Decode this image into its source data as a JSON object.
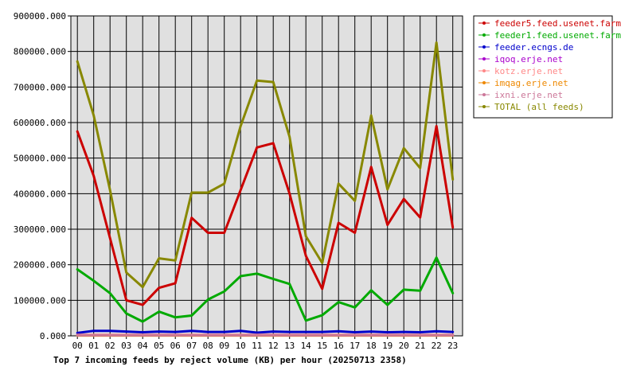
{
  "chart_data": {
    "type": "line",
    "title": "Top 7 incoming feeds by reject volume (KB) per hour (20250713 2358)",
    "categories": [
      "00",
      "01",
      "02",
      "03",
      "04",
      "05",
      "06",
      "07",
      "08",
      "09",
      "10",
      "11",
      "12",
      "13",
      "14",
      "15",
      "16",
      "17",
      "18",
      "19",
      "20",
      "21",
      "22",
      "23"
    ],
    "ylim": [
      0,
      900000
    ],
    "yticks": [
      "0.000",
      "100000.000",
      "200000.000",
      "300000.000",
      "400000.000",
      "500000.000",
      "600000.000",
      "700000.000",
      "800000.000",
      "900000.000"
    ],
    "grid": true,
    "legend_position": "right",
    "series": [
      {
        "name": "feeder5.feed.usenet.farm",
        "color": "#cc0000",
        "values": [
          575000,
          450000,
          275000,
          100000,
          87000,
          135000,
          148000,
          332000,
          290000,
          290000,
          410000,
          530000,
          542000,
          400000,
          225000,
          132000,
          318000,
          290000,
          475000,
          312000,
          385000,
          333000,
          590000,
          305000
        ]
      },
      {
        "name": "feeder1.feed.usenet.farm",
        "color": "#00aa00",
        "values": [
          187000,
          155000,
          120000,
          63000,
          40000,
          68000,
          52000,
          57000,
          102000,
          125000,
          168000,
          175000,
          160000,
          146000,
          43000,
          58000,
          95000,
          80000,
          128000,
          87000,
          130000,
          127000,
          220000,
          120000
        ]
      },
      {
        "name": "feeder.ecngs.de",
        "color": "#0000cc",
        "values": [
          8000,
          14000,
          14000,
          12000,
          10000,
          12000,
          11000,
          14000,
          11000,
          11000,
          14000,
          9000,
          12000,
          11000,
          11000,
          11000,
          13000,
          10000,
          12000,
          10000,
          11000,
          10000,
          13000,
          11000
        ]
      },
      {
        "name": "iqoq.erje.net",
        "color": "#aa00cc",
        "values": [
          2000,
          2000,
          2000,
          2000,
          2000,
          2000,
          2000,
          2000,
          2000,
          2000,
          2000,
          2000,
          2000,
          2000,
          2000,
          2000,
          2000,
          2000,
          2000,
          2000,
          2000,
          2000,
          2000,
          2000
        ]
      },
      {
        "name": "kotz.erje.net",
        "color": "#ff8888",
        "values": [
          3000,
          3000,
          3000,
          3000,
          3000,
          3000,
          3000,
          3000,
          3000,
          3000,
          3000,
          3000,
          3000,
          3000,
          3000,
          3000,
          3000,
          3000,
          3000,
          3000,
          3000,
          3000,
          3000,
          3000
        ]
      },
      {
        "name": "imqag.erje.net",
        "color": "#ee8800",
        "values": [
          1000,
          1000,
          1000,
          1000,
          1000,
          1000,
          1000,
          1000,
          1000,
          1000,
          1000,
          1000,
          1000,
          1000,
          1000,
          1000,
          1000,
          1000,
          1000,
          1000,
          1000,
          1000,
          1000,
          1000
        ]
      },
      {
        "name": "ixni.erje.net",
        "color": "#cc7799",
        "values": [
          1500,
          1500,
          1500,
          1500,
          1500,
          1500,
          1500,
          1500,
          1500,
          1500,
          1500,
          1500,
          1500,
          1500,
          1500,
          1500,
          1500,
          1500,
          1500,
          1500,
          1500,
          1500,
          1500,
          1500
        ]
      },
      {
        "name": "TOTAL (all feeds)",
        "color": "#888800",
        "values": [
          772000,
          620000,
          410000,
          178000,
          137000,
          218000,
          212000,
          403000,
          403000,
          428000,
          590000,
          718000,
          714000,
          560000,
          280000,
          205000,
          428000,
          380000,
          620000,
          412000,
          528000,
          472000,
          825000,
          440000
        ]
      }
    ]
  }
}
